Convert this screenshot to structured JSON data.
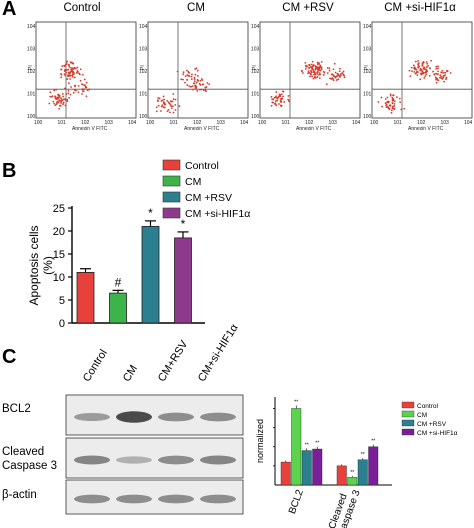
{
  "panel_labels": {
    "a": "A",
    "b": "B",
    "c": "C"
  },
  "panel_a": {
    "titles": [
      "Control",
      "CM",
      "CM +RSV",
      "CM +si-HIF1α"
    ],
    "y_axis_label": "PI",
    "x_axis_label": "Annexin V FITC",
    "tick_exponents": [
      "0",
      "1",
      "2",
      "3",
      "4"
    ],
    "tick_base": "10",
    "dot_color": "#d63a2b",
    "gate_line_color": "#555555"
  },
  "chart_data": [
    {
      "type": "bar",
      "categories": [
        "Control",
        "CM",
        "CM +RSV",
        "CM +si-HIF1α"
      ],
      "values": [
        11,
        6.5,
        21,
        18.5
      ],
      "errors": [
        0.8,
        0.6,
        1.2,
        1.3
      ],
      "annotations": [
        "",
        "#",
        "*",
        "*"
      ],
      "colors": [
        "#e8403b",
        "#3db44a",
        "#2b7f8e",
        "#8e3a8c"
      ],
      "legend": [
        "Control",
        "CM",
        "CM +RSV",
        "CM +si-HIF1α"
      ],
      "legend_position": "top-right",
      "ylabel": "Apoptosis cells (%)",
      "yticks": [
        "0",
        "5",
        "10",
        "15",
        "20",
        "25"
      ],
      "ylim": [
        0,
        25
      ],
      "grid": false
    },
    {
      "type": "bar",
      "categories": [
        "BCL2",
        "Cleaved Caspase 3"
      ],
      "series": [
        {
          "name": "Control",
          "values": [
            0.3,
            0.25
          ],
          "errors": [
            0.02,
            0.02
          ],
          "annotations": [
            "",
            ""
          ]
        },
        {
          "name": "CM",
          "values": [
            1.0,
            0.1
          ],
          "errors": [
            0.04,
            0.02
          ],
          "annotations": [
            "**",
            "**"
          ]
        },
        {
          "name": "CM +RSV",
          "values": [
            0.45,
            0.33
          ],
          "errors": [
            0.03,
            0.02
          ],
          "annotations": [
            "**",
            "**"
          ]
        },
        {
          "name": "CM +si-HIF1α",
          "values": [
            0.47,
            0.5
          ],
          "errors": [
            0.03,
            0.03
          ],
          "annotations": [
            "**",
            "**"
          ]
        }
      ],
      "colors": [
        "#e8403b",
        "#5cd24f",
        "#2b7f8e",
        "#7a1f9a"
      ],
      "legend_position": "top-right",
      "ylabel": "normalized",
      "ylim": [
        0,
        1.15
      ],
      "grid": false
    }
  ],
  "panel_c": {
    "lanes": [
      "Control",
      "CM",
      "CM+RSV",
      "CM+si-HIF1α"
    ],
    "rows": [
      {
        "label_line1": "BCL2",
        "label_line2": "",
        "bands": [
          0.35,
          0.9,
          0.45,
          0.45
        ]
      },
      {
        "label_line1": "Cleaved",
        "label_line2": "Caspase 3",
        "bands": [
          0.5,
          0.2,
          0.45,
          0.5
        ]
      },
      {
        "label_line1": "β-actin",
        "label_line2": "",
        "bands": [
          0.45,
          0.45,
          0.45,
          0.45
        ]
      }
    ]
  }
}
